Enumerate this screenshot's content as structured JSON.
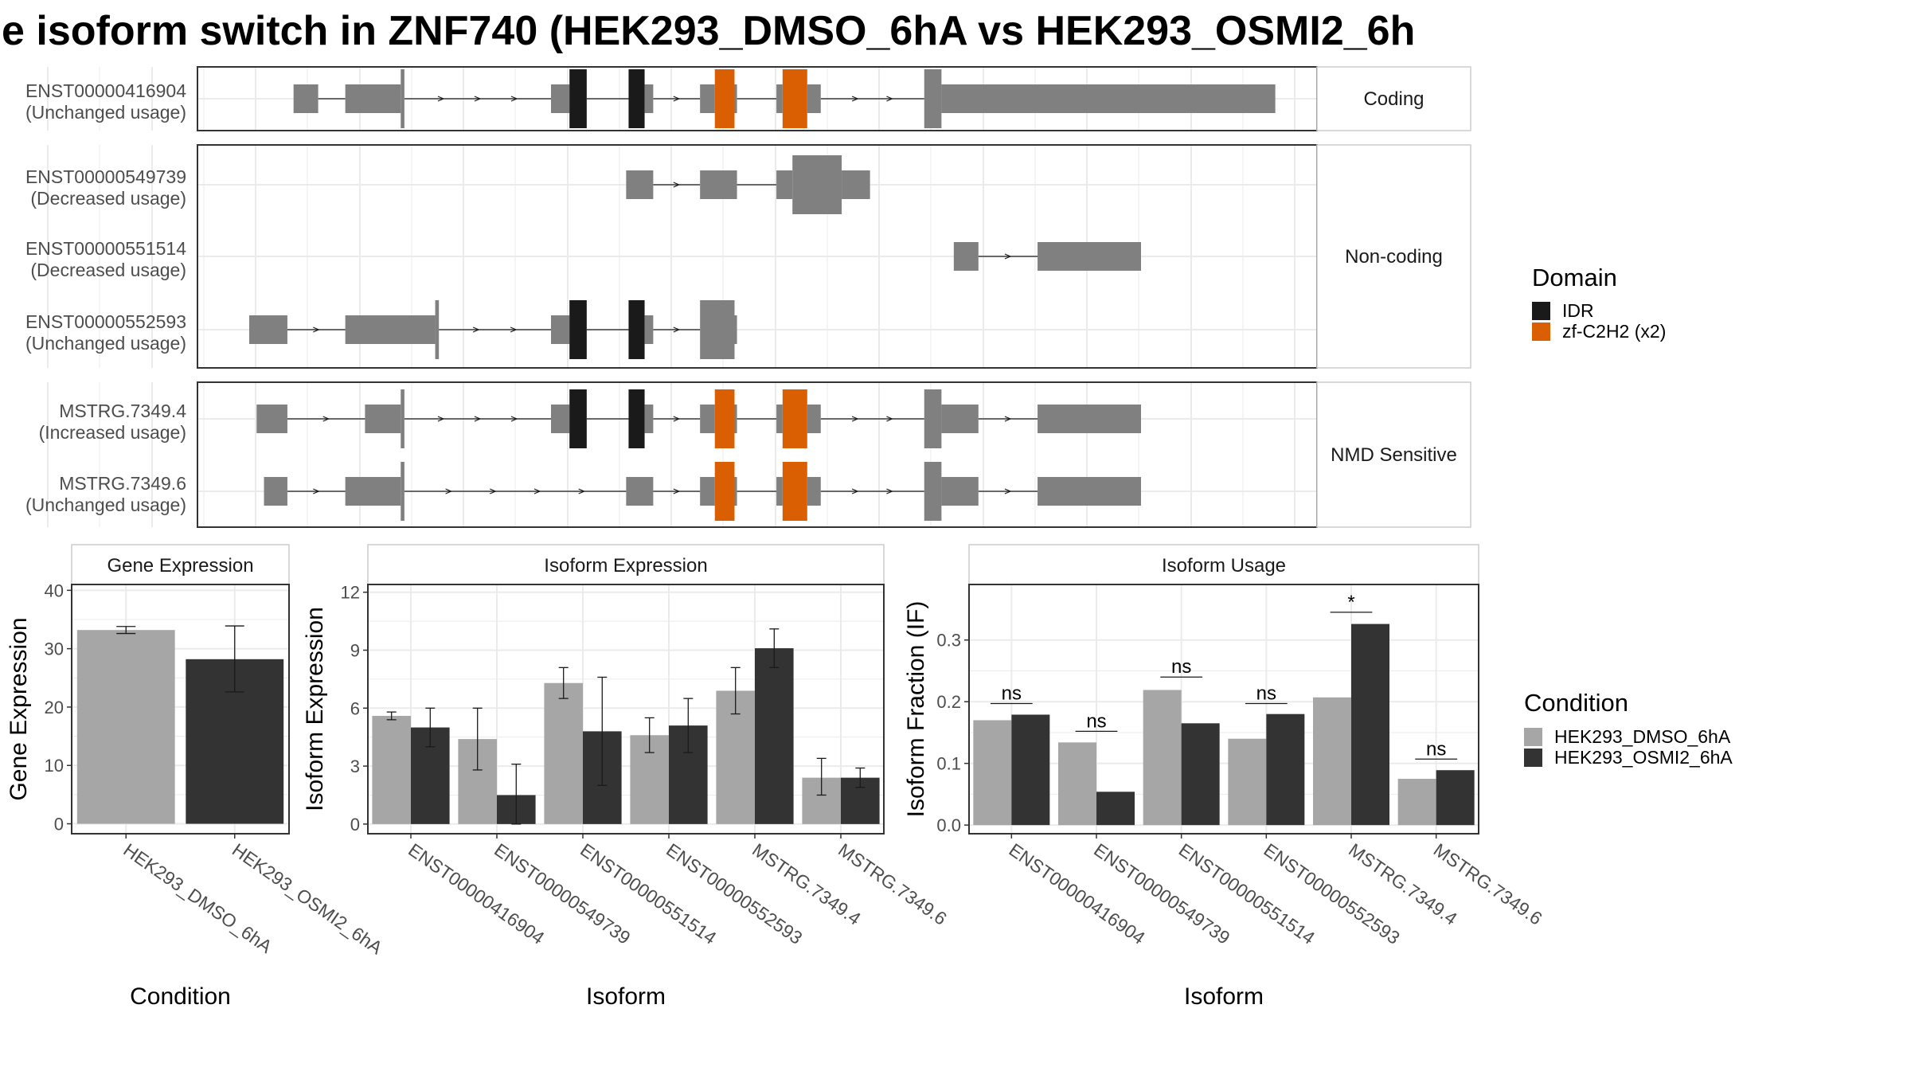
{
  "title": "e isoform switch in ZNF740 (HEK293_DMSO_6hA vs HEK293_OSMI2_6h",
  "colors": {
    "exon": "#808080",
    "IDR": "#1a1a1a",
    "zf": "#d95f02",
    "dmso": "#a6a6a6",
    "osmi": "#333333",
    "grid": "#ebebeb",
    "panel_border": "#333333",
    "strip_border": "#cccccc"
  },
  "structure": {
    "domain_legend": {
      "title": "Domain",
      "items": [
        {
          "label": "IDR",
          "color": "#1a1a1a"
        },
        {
          "label": "zf-C2H2 (x2)",
          "color": "#d95f02"
        }
      ]
    },
    "groups": [
      {
        "label": "Coding",
        "transcripts": [
          {
            "id": "ENST00000416904",
            "usage": "(Unchanged usage)",
            "exons": [
              [
                78,
                98,
                "n"
              ],
              [
                120,
                165,
                "n"
              ],
              [
                165,
                168,
                "t"
              ],
              [
                287,
                302,
                "n"
              ],
              [
                302,
                316,
                "IDR"
              ],
              [
                350,
                363,
                "IDR"
              ],
              [
                363,
                370,
                "n"
              ],
              [
                408,
                420,
                "n"
              ],
              [
                420,
                436,
                "zf"
              ],
              [
                436,
                438,
                "n"
              ],
              [
                470,
                475,
                "n"
              ],
              [
                475,
                495,
                "zf"
              ],
              [
                495,
                506,
                "n"
              ],
              [
                590,
                604,
                "t"
              ],
              [
                604,
                875,
                "n"
              ]
            ]
          }
        ]
      },
      {
        "label": "Non-coding",
        "transcripts": [
          {
            "id": "ENST00000549739",
            "usage": "(Decreased usage)",
            "exons": [
              [
                348,
                370,
                "n"
              ],
              [
                408,
                438,
                "n"
              ],
              [
                470,
                483,
                "n"
              ],
              [
                483,
                523,
                "t"
              ],
              [
                523,
                546,
                "n"
              ]
            ]
          },
          {
            "id": "ENST00000551514",
            "usage": "(Decreased usage)",
            "exons": [
              [
                614,
                634,
                "n"
              ],
              [
                682,
                766,
                "n"
              ]
            ]
          },
          {
            "id": "ENST00000552593",
            "usage": "(Unchanged usage)",
            "exons": [
              [
                42,
                73,
                "n"
              ],
              [
                120,
                193,
                "n"
              ],
              [
                193,
                196,
                "t"
              ],
              [
                287,
                302,
                "n"
              ],
              [
                302,
                316,
                "IDR"
              ],
              [
                350,
                363,
                "IDR"
              ],
              [
                363,
                370,
                "n"
              ],
              [
                408,
                436,
                "t"
              ],
              [
                436,
                438,
                "n"
              ]
            ]
          }
        ]
      },
      {
        "label": "NMD Sensitive",
        "transcripts": [
          {
            "id": "MSTRG.7349.4",
            "usage": "(Increased usage)",
            "exons": [
              [
                48,
                73,
                "n"
              ],
              [
                136,
                165,
                "n"
              ],
              [
                165,
                168,
                "t"
              ],
              [
                287,
                302,
                "n"
              ],
              [
                302,
                316,
                "IDR"
              ],
              [
                350,
                363,
                "IDR"
              ],
              [
                363,
                370,
                "n"
              ],
              [
                408,
                420,
                "n"
              ],
              [
                420,
                436,
                "zf"
              ],
              [
                436,
                438,
                "n"
              ],
              [
                470,
                475,
                "n"
              ],
              [
                475,
                495,
                "zf"
              ],
              [
                495,
                506,
                "n"
              ],
              [
                590,
                604,
                "t"
              ],
              [
                604,
                634,
                "n"
              ],
              [
                682,
                766,
                "n"
              ]
            ]
          },
          {
            "id": "MSTRG.7349.6",
            "usage": "(Unchanged usage)",
            "exons": [
              [
                54,
                73,
                "n"
              ],
              [
                120,
                165,
                "n"
              ],
              [
                165,
                168,
                "t"
              ],
              [
                348,
                370,
                "n"
              ],
              [
                408,
                420,
                "n"
              ],
              [
                420,
                436,
                "zf"
              ],
              [
                436,
                438,
                "n"
              ],
              [
                470,
                475,
                "n"
              ],
              [
                475,
                495,
                "zf"
              ],
              [
                495,
                506,
                "n"
              ],
              [
                590,
                604,
                "t"
              ],
              [
                604,
                634,
                "n"
              ],
              [
                682,
                766,
                "n"
              ]
            ]
          }
        ]
      }
    ]
  },
  "chart_data": [
    {
      "type": "bar",
      "strip": "Gene Expression",
      "xlabel": "Condition",
      "ylabel": "Gene Expression",
      "categories": [
        "HEK293_DMSO_6hA",
        "HEK293_OSMI2_6hA"
      ],
      "values": [
        33.2,
        28.2
      ],
      "errors": [
        [
          32.6,
          33.8
        ],
        [
          22.6,
          33.9
        ]
      ],
      "ylim": [
        -1.7,
        41
      ],
      "yticks": [
        0,
        10,
        20,
        30,
        40
      ]
    },
    {
      "type": "bar",
      "strip": "Isoform Expression",
      "xlabel": "Isoform",
      "ylabel": "Isoform Expression",
      "categories": [
        "ENST00000416904",
        "ENST00000549739",
        "ENST00000551514",
        "ENST00000552593",
        "MSTRG.7349.4",
        "MSTRG.7349.6"
      ],
      "series": [
        {
          "name": "HEK293_DMSO_6hA",
          "values": [
            5.6,
            4.4,
            7.3,
            4.6,
            6.9,
            2.4
          ],
          "errors": [
            [
              5.4,
              5.8
            ],
            [
              2.8,
              6.0
            ],
            [
              6.5,
              8.1
            ],
            [
              3.7,
              5.5
            ],
            [
              5.7,
              8.1
            ],
            [
              1.5,
              3.4
            ]
          ]
        },
        {
          "name": "HEK293_OSMI2_6hA",
          "values": [
            5.0,
            1.5,
            4.8,
            5.1,
            9.1,
            2.4
          ],
          "errors": [
            [
              4.0,
              6.0
            ],
            [
              0.0,
              3.1
            ],
            [
              2.0,
              7.6
            ],
            [
              3.7,
              6.5
            ],
            [
              8.1,
              10.1
            ],
            [
              1.9,
              2.9
            ]
          ]
        }
      ],
      "ylim": [
        -0.5,
        12.4
      ],
      "yticks": [
        0,
        3,
        6,
        9,
        12
      ]
    },
    {
      "type": "bar",
      "strip": "Isoform Usage",
      "xlabel": "Isoform",
      "ylabel": "Isoform Fraction (IF)",
      "categories": [
        "ENST00000416904",
        "ENST00000549739",
        "ENST00000551514",
        "ENST00000552593",
        "MSTRG.7349.4",
        "MSTRG.7349.6"
      ],
      "series": [
        {
          "name": "HEK293_DMSO_6hA",
          "values": [
            0.17,
            0.134,
            0.219,
            0.14,
            0.207,
            0.075
          ]
        },
        {
          "name": "HEK293_OSMI2_6hA",
          "values": [
            0.179,
            0.054,
            0.165,
            0.18,
            0.326,
            0.089
          ]
        }
      ],
      "significance": [
        {
          "label": "ns",
          "y": 0.197
        },
        {
          "label": "ns",
          "y": 0.152
        },
        {
          "label": "ns",
          "y": 0.24
        },
        {
          "label": "ns",
          "y": 0.197
        },
        {
          "label": "*",
          "y": 0.345
        },
        {
          "label": "ns",
          "y": 0.107
        }
      ],
      "ylim": [
        -0.014,
        0.39
      ],
      "yticks": [
        0.0,
        0.1,
        0.2,
        0.3
      ],
      "ytick_labels": [
        "0.0",
        "0.1",
        "0.2",
        "0.3"
      ]
    }
  ],
  "condition_legend": {
    "title": "Condition",
    "items": [
      {
        "label": "HEK293_DMSO_6hA",
        "color": "#a6a6a6"
      },
      {
        "label": "HEK293_OSMI2_6hA",
        "color": "#333333"
      }
    ]
  }
}
